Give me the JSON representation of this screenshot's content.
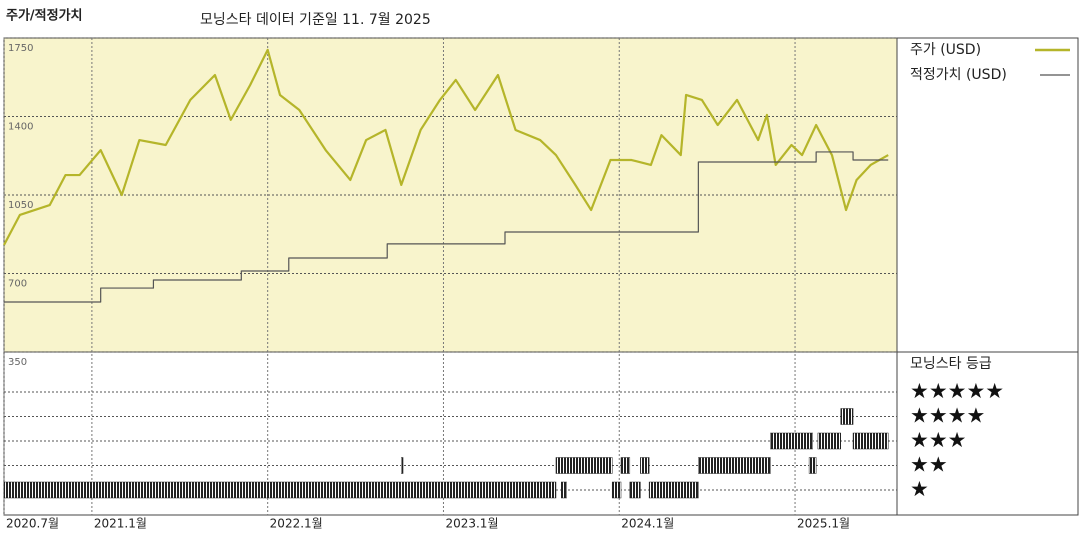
{
  "chart_data": {
    "type": "line",
    "title": "주가/적정가치",
    "subtitle": "모닝스타 데이터 기준일 11. 7월 2025",
    "xlim": [
      2020.5,
      2025.58
    ],
    "xticks": [
      {
        "value": 2020.5,
        "label": "2020.7월"
      },
      {
        "value": 2021.0,
        "label": "2021.1월"
      },
      {
        "value": 2022.0,
        "label": "2022.1월"
      },
      {
        "value": 2023.0,
        "label": "2023.1월"
      },
      {
        "value": 2024.0,
        "label": "2024.1월"
      },
      {
        "value": 2025.0,
        "label": "2025.1월"
      }
    ],
    "ylim": [
      350,
      1750
    ],
    "yticks": [
      350,
      700,
      1050,
      1400,
      1750
    ],
    "grid": true,
    "legend": "right",
    "series": [
      {
        "name": "주가 (USD)",
        "color": "#b5b52a",
        "x": [
          2020.5,
          2020.59,
          2020.76,
          2020.85,
          2020.93,
          2021.05,
          2021.17,
          2021.27,
          2021.42,
          2021.56,
          2021.7,
          2021.79,
          2021.9,
          2022.0,
          2022.07,
          2022.18,
          2022.33,
          2022.47,
          2022.56,
          2022.67,
          2022.76,
          2022.87,
          2022.98,
          2023.07,
          2023.18,
          2023.31,
          2023.41,
          2023.55,
          2023.64,
          2023.75,
          2023.84,
          2023.95,
          2024.07,
          2024.18,
          2024.24,
          2024.35,
          2024.38,
          2024.47,
          2024.56,
          2024.67,
          2024.79,
          2024.84,
          2024.89,
          2024.98,
          2025.04,
          2025.12,
          2025.21,
          2025.29,
          2025.35,
          2025.43,
          2025.53
        ],
        "values": [
          827,
          961,
          1005,
          1139,
          1139,
          1250,
          1050,
          1295,
          1273,
          1474,
          1585,
          1385,
          1540,
          1697,
          1496,
          1429,
          1250,
          1117,
          1295,
          1340,
          1095,
          1340,
          1474,
          1563,
          1429,
          1585,
          1340,
          1295,
          1228,
          1095,
          983,
          1206,
          1206,
          1184,
          1317,
          1228,
          1496,
          1474,
          1362,
          1474,
          1295,
          1407,
          1184,
          1273,
          1228,
          1362,
          1228,
          983,
          1117,
          1184,
          1228
        ]
      },
      {
        "name": "적정가치 (USD)",
        "color": "#555555",
        "step": true,
        "x": [
          2020.5,
          2021.05,
          2021.35,
          2021.85,
          2022.12,
          2022.68,
          2023.35,
          2024.45,
          2025.12,
          2025.33,
          2025.53
        ],
        "values": [
          573,
          635,
          671,
          711,
          769,
          832,
          885,
          1197,
          1242,
          1206,
          1206
        ]
      }
    ],
    "ratings": {
      "name": "모닝스타 등급",
      "color": "#222222",
      "levels": [
        {
          "value": 5,
          "label": "★★★★★"
        },
        {
          "value": 4,
          "label": "★★★★"
        },
        {
          "value": 3,
          "label": "★★★"
        },
        {
          "value": 2,
          "label": "★★"
        },
        {
          "value": 1,
          "label": "★"
        }
      ],
      "periods": [
        {
          "start": 2020.5,
          "end": 2023.64,
          "level": 1
        },
        {
          "start": 2023.67,
          "end": 2023.7,
          "level": 1
        },
        {
          "start": 2023.96,
          "end": 2024.01,
          "level": 1
        },
        {
          "start": 2024.06,
          "end": 2024.12,
          "level": 1
        },
        {
          "start": 2024.17,
          "end": 2024.45,
          "level": 1
        },
        {
          "start": 2022.76,
          "end": 2022.77,
          "level": 2
        },
        {
          "start": 2023.64,
          "end": 2023.96,
          "level": 2
        },
        {
          "start": 2024.01,
          "end": 2024.06,
          "level": 2
        },
        {
          "start": 2024.12,
          "end": 2024.17,
          "level": 2
        },
        {
          "start": 2024.45,
          "end": 2024.86,
          "level": 2
        },
        {
          "start": 2025.08,
          "end": 2025.12,
          "level": 2
        },
        {
          "start": 2024.86,
          "end": 2025.1,
          "level": 3
        },
        {
          "start": 2025.13,
          "end": 2025.26,
          "level": 3
        },
        {
          "start": 2025.33,
          "end": 2025.53,
          "level": 3
        },
        {
          "start": 2025.26,
          "end": 2025.33,
          "level": 4
        }
      ]
    }
  }
}
